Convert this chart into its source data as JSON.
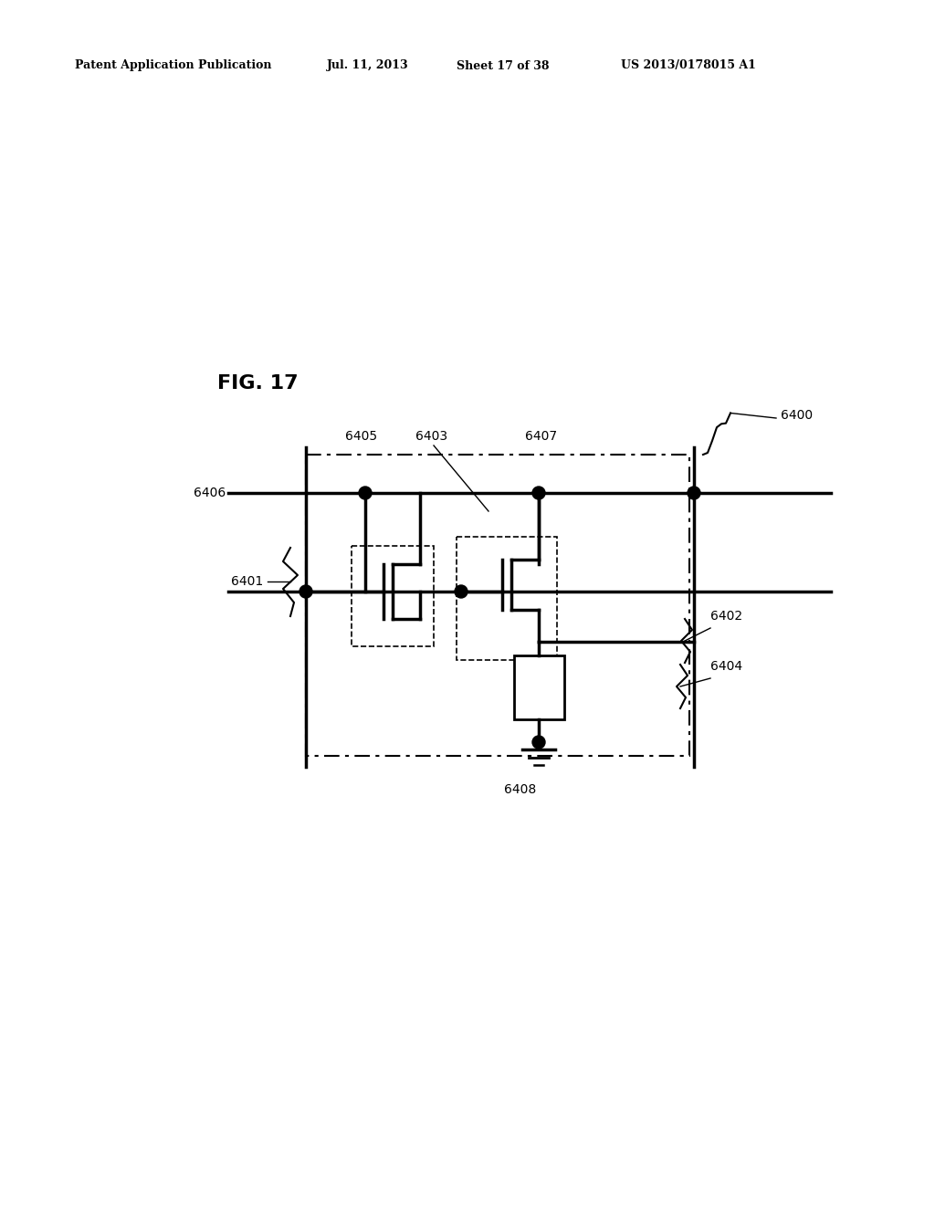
{
  "bg_color": "#ffffff",
  "fig_label": "FIG. 17",
  "header_text": "Patent Application Publication",
  "header_date": "Jul. 11, 2013",
  "header_sheet": "Sheet 17 of 38",
  "header_patent": "US 2013/0178015 A1"
}
